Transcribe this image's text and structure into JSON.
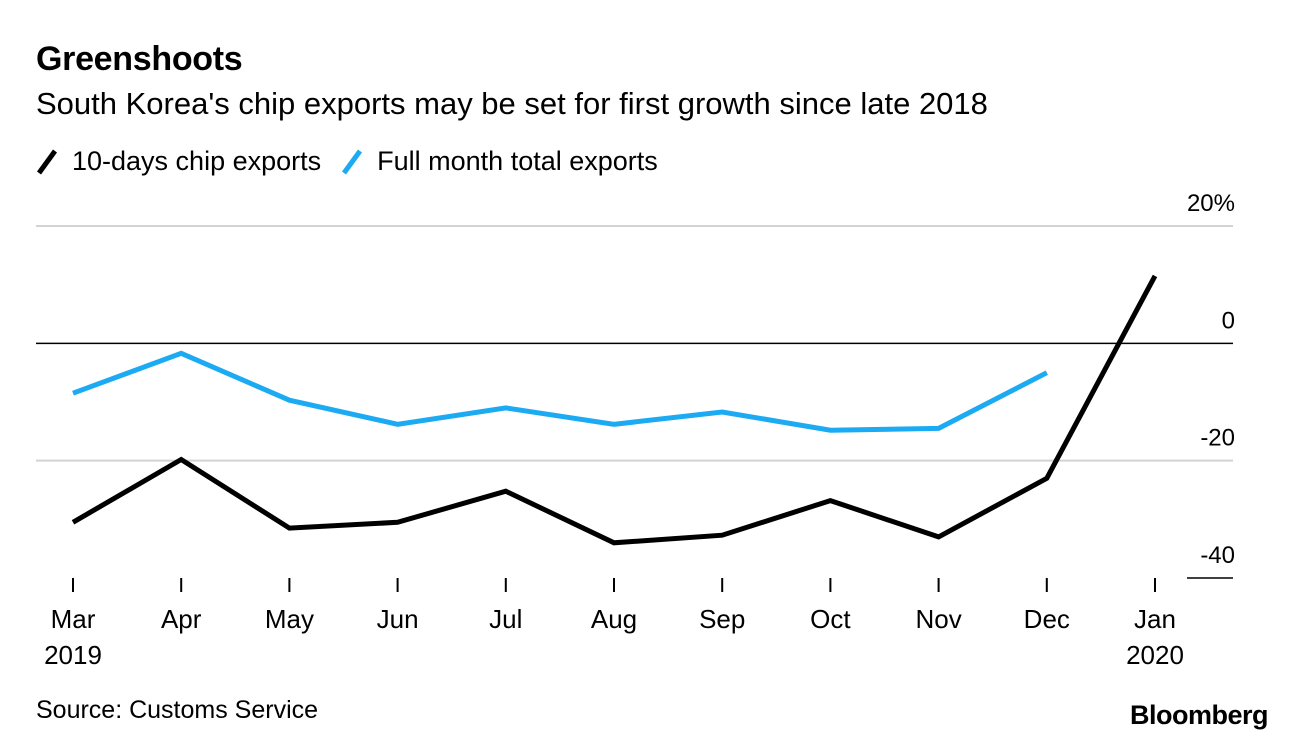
{
  "header": {
    "title": "Greenshoots",
    "subtitle": "South Korea's chip exports may be set for first growth since late 2018"
  },
  "legend": [
    {
      "label": "10-days chip exports",
      "color": "#000000"
    },
    {
      "label": "Full month total exports",
      "color": "#1cabf2"
    }
  ],
  "footer": {
    "source": "Source: Customs Service",
    "brand": "Bloomberg"
  },
  "chart_data": {
    "type": "line",
    "title": "Greenshoots",
    "subtitle": "South Korea's chip exports may be set for first growth since late 2018",
    "categories": [
      "Mar",
      "Apr",
      "May",
      "Jun",
      "Jul",
      "Aug",
      "Sep",
      "Oct",
      "Nov",
      "Dec",
      "Jan"
    ],
    "category_years": [
      "2019",
      "",
      "",
      "",
      "",
      "",
      "",
      "",
      "",
      "",
      "2020"
    ],
    "yticks": [
      20,
      0,
      -20,
      -40
    ],
    "ytick_labels": [
      "20%",
      "0",
      "-20",
      "-40"
    ],
    "ylim": [
      -40,
      20
    ],
    "grid": true,
    "y_axis_side": "right",
    "legend_position": "top-left",
    "series": [
      {
        "name": "10-days chip exports",
        "color": "#000000",
        "values": [
          -30.5,
          -19.8,
          -31.5,
          -30.5,
          -25.2,
          -34.0,
          -32.7,
          -26.8,
          -33.0,
          -23.0,
          11.5
        ]
      },
      {
        "name": "Full month total exports",
        "color": "#1cabf2",
        "values": [
          -8.5,
          -1.7,
          -9.7,
          -13.8,
          -11.0,
          -13.8,
          -11.7,
          -14.8,
          -14.5,
          -5.0,
          null
        ]
      }
    ]
  }
}
